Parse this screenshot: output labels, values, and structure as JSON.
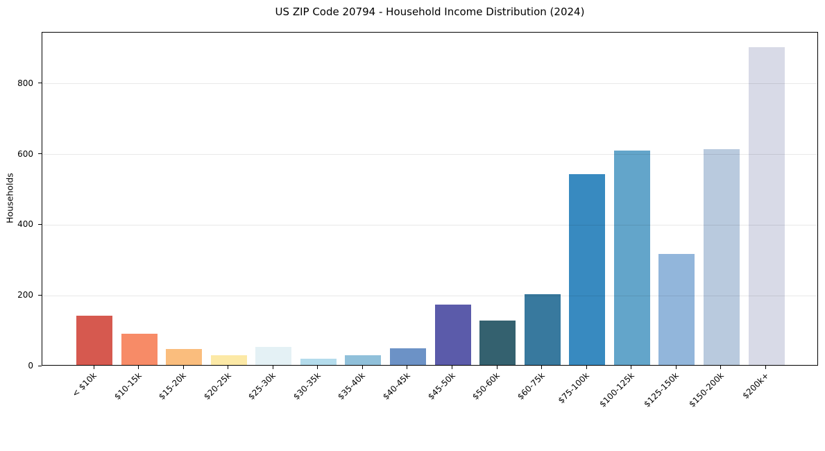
{
  "chart_data": {
    "type": "bar",
    "title": "US ZIP Code 20794 - Household Income Distribution (2024)",
    "xlabel": "",
    "ylabel": "Households",
    "categories": [
      "< $10k",
      "$10-15k",
      "$15-20k",
      "$20-25k",
      "$25-30k",
      "$30-35k",
      "$35-40k",
      "$40-45k",
      "$45-50k",
      "$50-60k",
      "$60-75k",
      "$75-100k",
      "$100-125k",
      "$125-150k",
      "$150-200k",
      "$200k+"
    ],
    "values": [
      140,
      88,
      46,
      28,
      52,
      18,
      27,
      47,
      170,
      125,
      200,
      540,
      608,
      315,
      612,
      900
    ],
    "bar_colors": [
      "#d6594f",
      "#f78b67",
      "#fabd7d",
      "#fce9a6",
      "#e4f1f5",
      "#b4dcec",
      "#90c0da",
      "#6c92c6",
      "#5b5baa",
      "#34616f",
      "#38799e",
      "#388ac0",
      "#63a5ca",
      "#92b6db",
      "#b9cade",
      "#d8dae7"
    ],
    "yticks": [
      0,
      200,
      400,
      600,
      800
    ],
    "ylim": [
      0,
      945
    ],
    "grid": true,
    "legend": "none",
    "axis_color": "#000000",
    "grid_color": "#ebebeb",
    "background_color": "#ffffff"
  }
}
